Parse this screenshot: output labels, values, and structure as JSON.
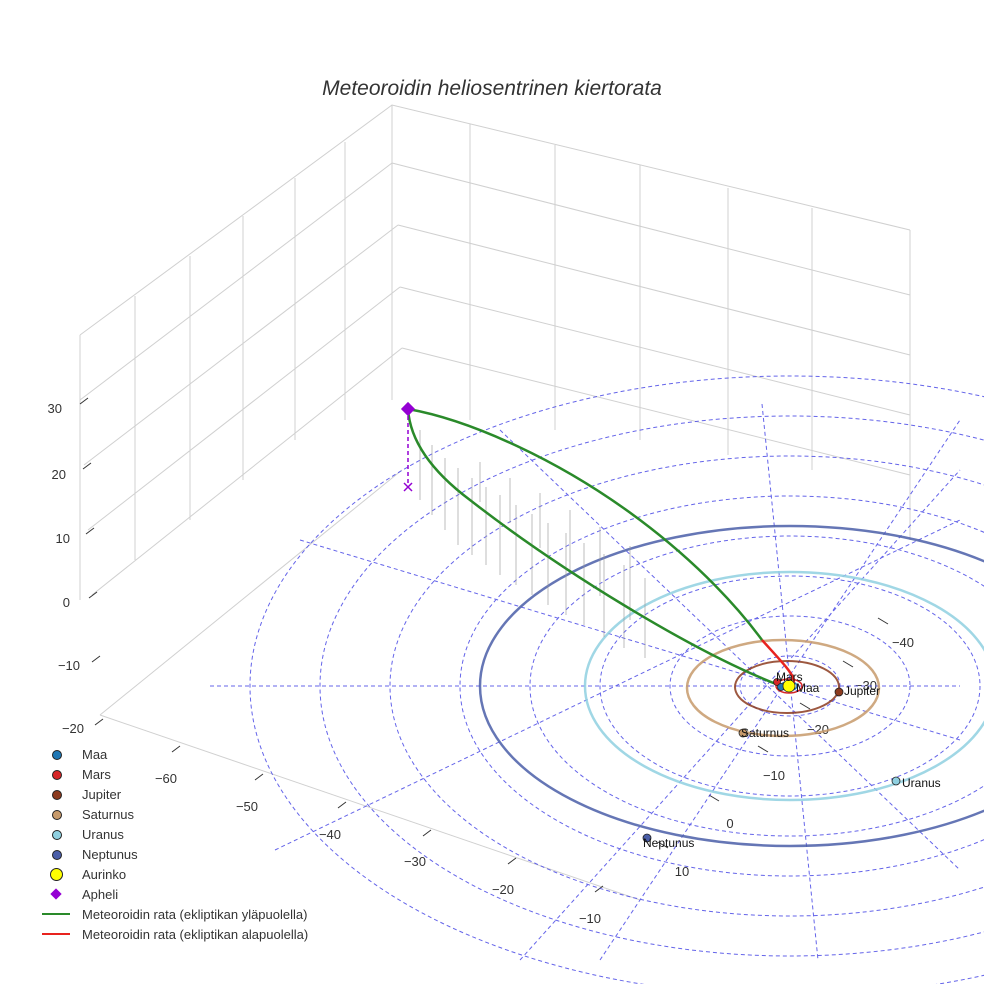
{
  "chart_data": {
    "type": "3d-orbit",
    "title": "Meteoroidin heliosentrinen kiertorata",
    "axes": {
      "z_ticks": [
        "30",
        "20",
        "10",
        "0",
        "−10",
        "−20"
      ],
      "x_ticks": [
        "−60",
        "−50",
        "−40",
        "−30",
        "−20",
        "−10"
      ],
      "y_ticks_outer": [
        "−40",
        "−30",
        "−20",
        "−10",
        "0",
        "10"
      ],
      "x_range": [
        -70,
        10
      ],
      "y_range": [
        -50,
        15
      ],
      "z_range": [
        -20,
        35
      ]
    },
    "planets": [
      {
        "name": "Maa",
        "color": "#1f77b4",
        "orbit_au": 1.0
      },
      {
        "name": "Mars",
        "color": "#d62728",
        "orbit_au": 1.52
      },
      {
        "name": "Jupiter",
        "color": "#8c3b1f",
        "orbit_au": 5.2
      },
      {
        "name": "Saturnus",
        "color": "#c79a6b",
        "orbit_au": 9.54
      },
      {
        "name": "Uranus",
        "color": "#8fd0e0",
        "orbit_au": 19.2
      },
      {
        "name": "Neptunus",
        "color": "#4a5ea8",
        "orbit_au": 30.1
      }
    ],
    "sun": {
      "name": "Aurinko",
      "color": "#ffff00"
    },
    "aphelion": {
      "name": "Apheli",
      "color": "#9400d3",
      "z_au": 30
    },
    "legend": [
      {
        "label": "Maa",
        "kind": "dot",
        "color": "#1f77b4"
      },
      {
        "label": "Mars",
        "kind": "dot",
        "color": "#d62728"
      },
      {
        "label": "Jupiter",
        "kind": "dot",
        "color": "#8c3b1f"
      },
      {
        "label": "Saturnus",
        "kind": "dot",
        "color": "#c79a6b"
      },
      {
        "label": "Uranus",
        "kind": "dot",
        "color": "#8fd0e0"
      },
      {
        "label": "Neptunus",
        "kind": "dot",
        "color": "#4a5ea8"
      },
      {
        "label": "Aurinko",
        "kind": "bigdot",
        "color": "#ffff00"
      },
      {
        "label": "Apheli",
        "kind": "diamond",
        "color": "#9400d3"
      },
      {
        "label": "Meteoroidin rata (ekliptikan yläpuolella)",
        "kind": "line",
        "color": "#2a8a2a"
      },
      {
        "label": "Meteoroidin rata (ekliptikan alapuolella)",
        "kind": "line",
        "color": "#e8231e"
      }
    ]
  }
}
